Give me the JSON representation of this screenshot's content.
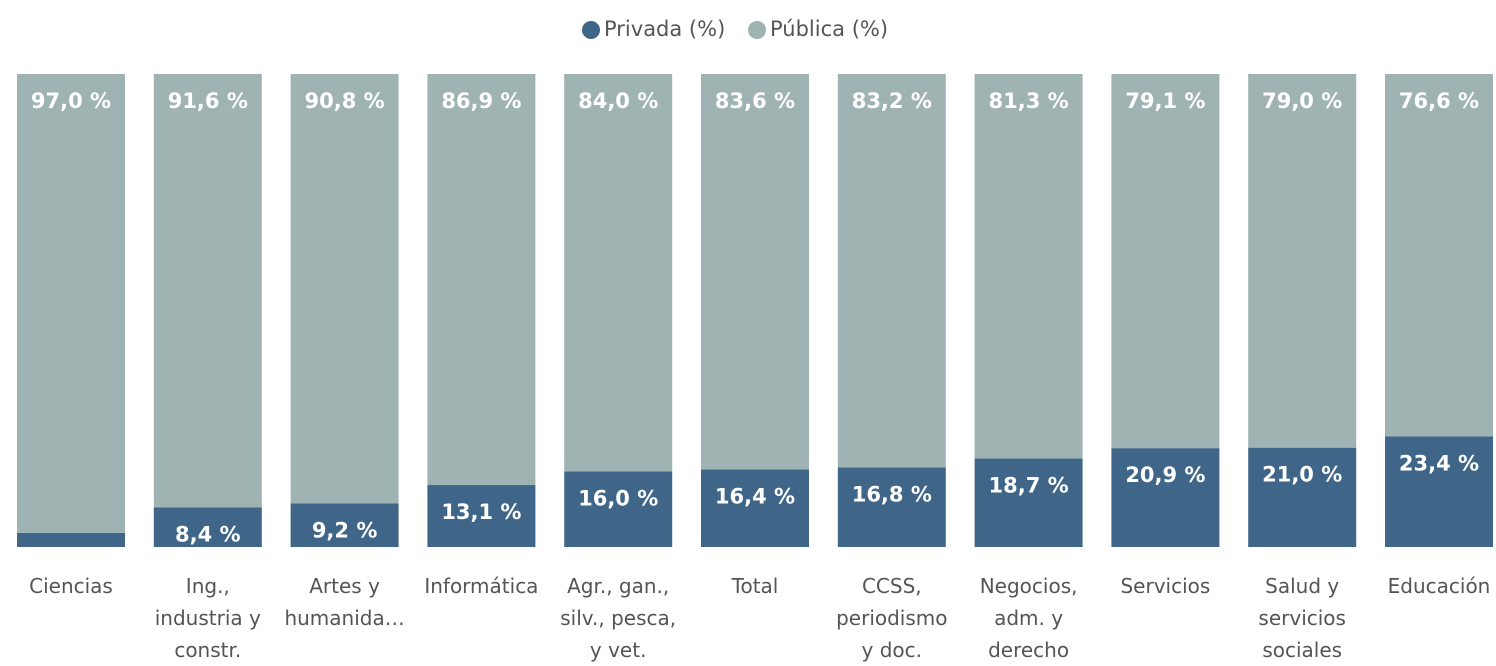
{
  "chart_data": {
    "type": "stacked_bar_100",
    "categories": [
      "Ciencias",
      "Ing., industria y constr.",
      "Artes y humanida…",
      "Informática",
      "Agr., gan., silv., pesca, y vet.",
      "Total",
      "CCSS, periodismo y doc.",
      "Negocios, adm. y derecho",
      "Servicios",
      "Salud y servicios sociales",
      "Educación"
    ],
    "series": [
      {
        "name": "Privada (%)",
        "color": "#3f6688",
        "values": [
          3.0,
          8.4,
          9.2,
          13.1,
          16.0,
          16.4,
          16.8,
          18.7,
          20.9,
          21.0,
          23.4
        ],
        "value_labels": [
          null,
          "8,4 %",
          "9,2 %",
          "13,1 %",
          "16,0 %",
          "16,4 %",
          "16,8 %",
          "18,7 %",
          "20,9 %",
          "21,0 %",
          "23,4 %"
        ]
      },
      {
        "name": "Pública (%)",
        "color": "#9fb3b3",
        "values": [
          97.0,
          91.6,
          90.8,
          86.9,
          84.0,
          83.6,
          83.2,
          81.3,
          79.1,
          79.0,
          76.6
        ],
        "value_labels": [
          "97,0 %",
          "91,6 %",
          "90,8 %",
          "86,9 %",
          "84,0 %",
          "83,6 %",
          "83,2 %",
          "81,3 %",
          "79,1 %",
          "79,0 %",
          "76,6 %"
        ]
      }
    ],
    "legend": "top"
  }
}
